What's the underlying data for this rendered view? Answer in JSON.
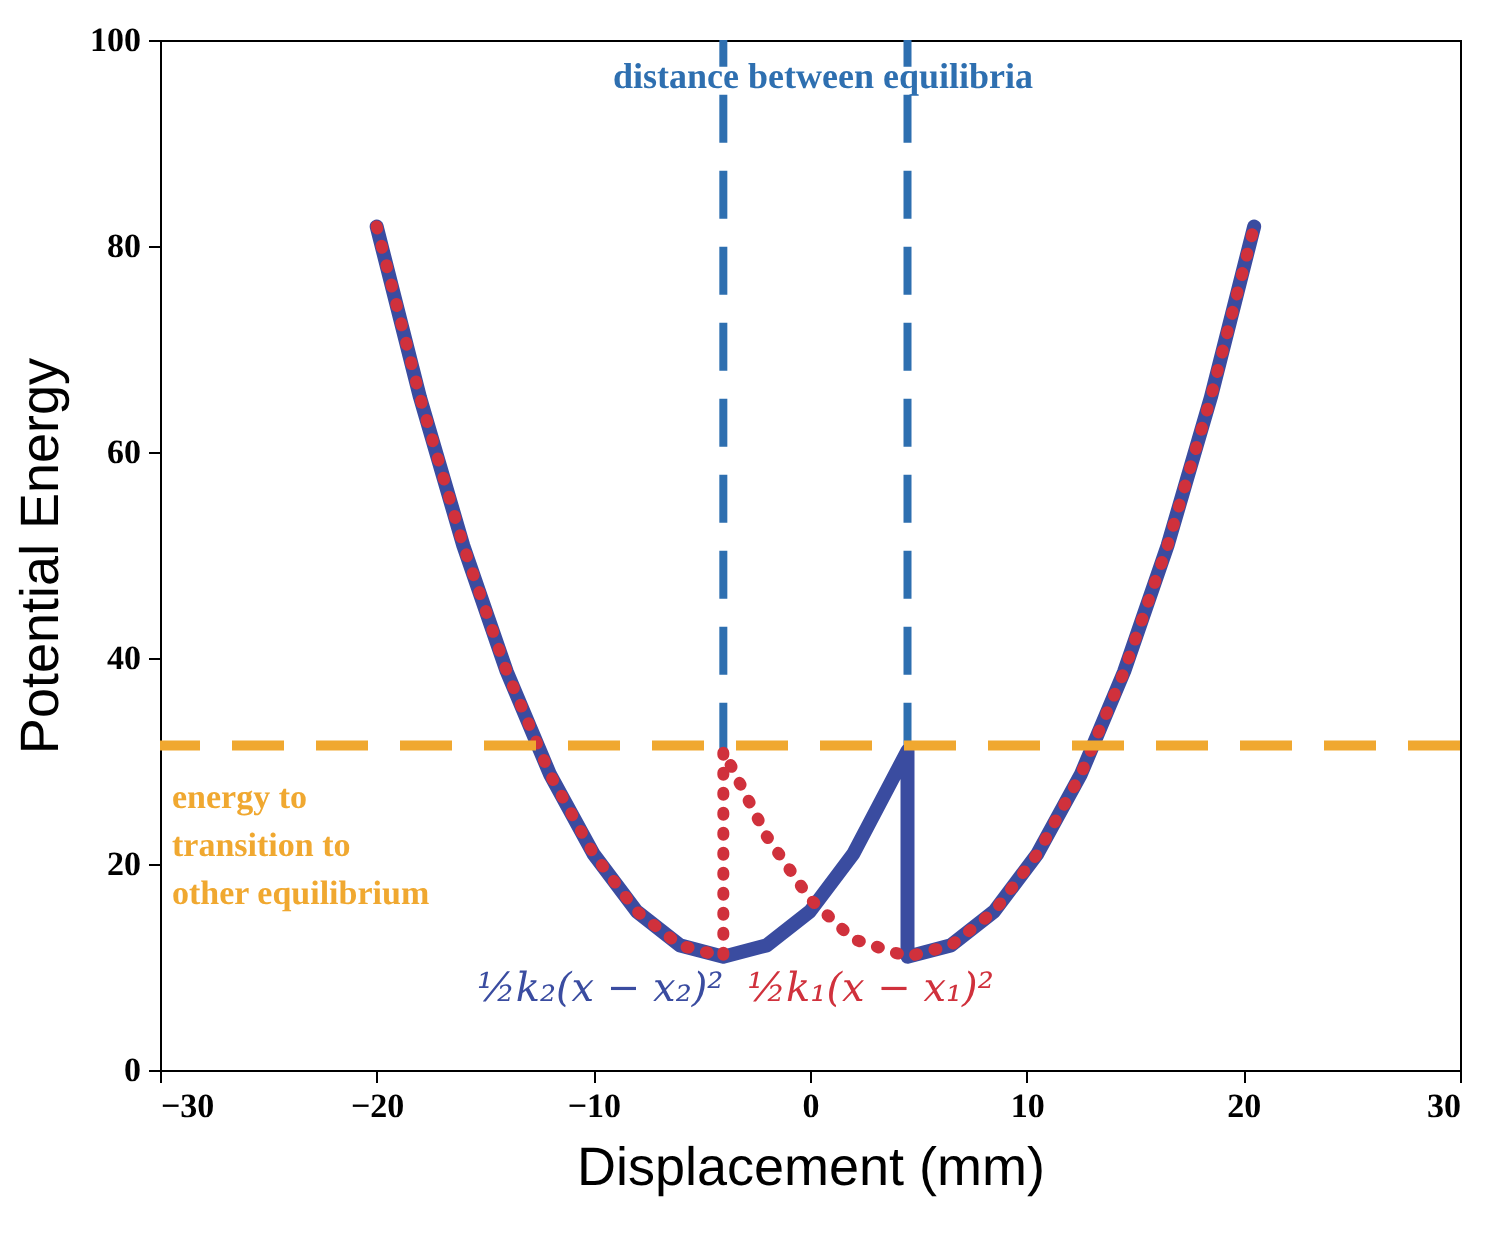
{
  "chart_data": {
    "type": "line",
    "xlabel": "Displacement (mm)",
    "ylabel": "Potential Energy",
    "xlim": [
      -30,
      30
    ],
    "xticks": [
      -30,
      -20,
      -10,
      0,
      10,
      20,
      30
    ],
    "ylim": [
      0,
      100
    ],
    "yticks": [
      0,
      20,
      40,
      60,
      80,
      100
    ],
    "grid": false,
    "series": [
      {
        "name": "½k₂(x − x₂)²",
        "color": "#3a4ca0",
        "line_style": "solid",
        "x": [
          -20,
          -18,
          -16,
          -14,
          -12,
          -10,
          -8,
          -6,
          -4,
          -2,
          0,
          2,
          4.5,
          4.5,
          6.5,
          8.5,
          10.5,
          12.5,
          14.5,
          16.5,
          18.5,
          20.5
        ],
        "values": [
          81.9,
          65.3,
          50.9,
          38.7,
          28.7,
          21.0,
          15.4,
          12.1,
          11.0,
          12.1,
          15.4,
          21.0,
          31.0,
          11.0,
          12.1,
          15.4,
          21.0,
          28.7,
          38.7,
          50.9,
          65.3,
          81.9
        ]
      },
      {
        "name": "½k₁(x − x₁)²",
        "color": "#d0313c",
        "line_style": "dotted",
        "x": [
          -20,
          -18,
          -16,
          -14,
          -12,
          -10,
          -8,
          -6,
          -4,
          -4,
          -2,
          0,
          2,
          4.5,
          6.5,
          8.5,
          10.5,
          12.5,
          14.5,
          16.5,
          18.5,
          20.5
        ],
        "values": [
          81.9,
          65.3,
          50.9,
          38.7,
          28.7,
          21.0,
          15.4,
          12.1,
          11.0,
          31.0,
          22.7,
          16.6,
          12.7,
          11.0,
          12.1,
          15.4,
          21.0,
          28.7,
          38.7,
          50.9,
          65.3,
          81.9
        ]
      },
      {
        "color": "#2e6fb0",
        "line_style": "dashed",
        "x": [
          -4,
          -4
        ],
        "values": [
          31.0,
          100
        ]
      },
      {
        "color": "#2e6fb0",
        "line_style": "dashed",
        "x": [
          4.5,
          4.5
        ],
        "values": [
          31.0,
          100
        ]
      }
    ],
    "ref_lines": [
      {
        "axis": "y",
        "value": 31.5,
        "label": "energy to transition to other equilibrium",
        "color": "#f0a830",
        "line_style": "dashed"
      }
    ],
    "annotations": [
      "distance between equilibria"
    ]
  }
}
